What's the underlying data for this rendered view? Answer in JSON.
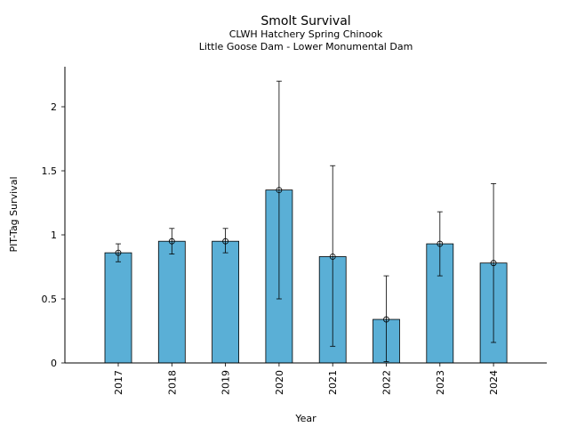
{
  "chart_data": {
    "type": "bar",
    "title": "Smolt Survival",
    "subtitle_lines": [
      "CLWH Hatchery Spring Chinook",
      "Little Goose Dam - Lower Monumental Dam"
    ],
    "xlabel": "Year",
    "ylabel": "PIT-Tag Survival",
    "categories": [
      "2017",
      "2018",
      "2019",
      "2020",
      "2021",
      "2022",
      "2023",
      "2024"
    ],
    "values": [
      0.86,
      0.95,
      0.95,
      1.35,
      0.83,
      0.34,
      0.93,
      0.78
    ],
    "error_low": [
      0.79,
      0.85,
      0.86,
      0.5,
      0.13,
      0.01,
      0.68,
      0.16
    ],
    "error_high": [
      0.93,
      1.05,
      1.05,
      2.2,
      1.54,
      0.68,
      1.18,
      1.4
    ],
    "yticks": [
      0,
      0.5,
      1,
      1.5,
      2
    ],
    "yticks_labels": [
      "0",
      "0.5",
      "1",
      "1.5",
      "2"
    ],
    "ylim": [
      0,
      2.3
    ],
    "bar_color": "#5aafd6",
    "grid": false,
    "legend": "none"
  }
}
